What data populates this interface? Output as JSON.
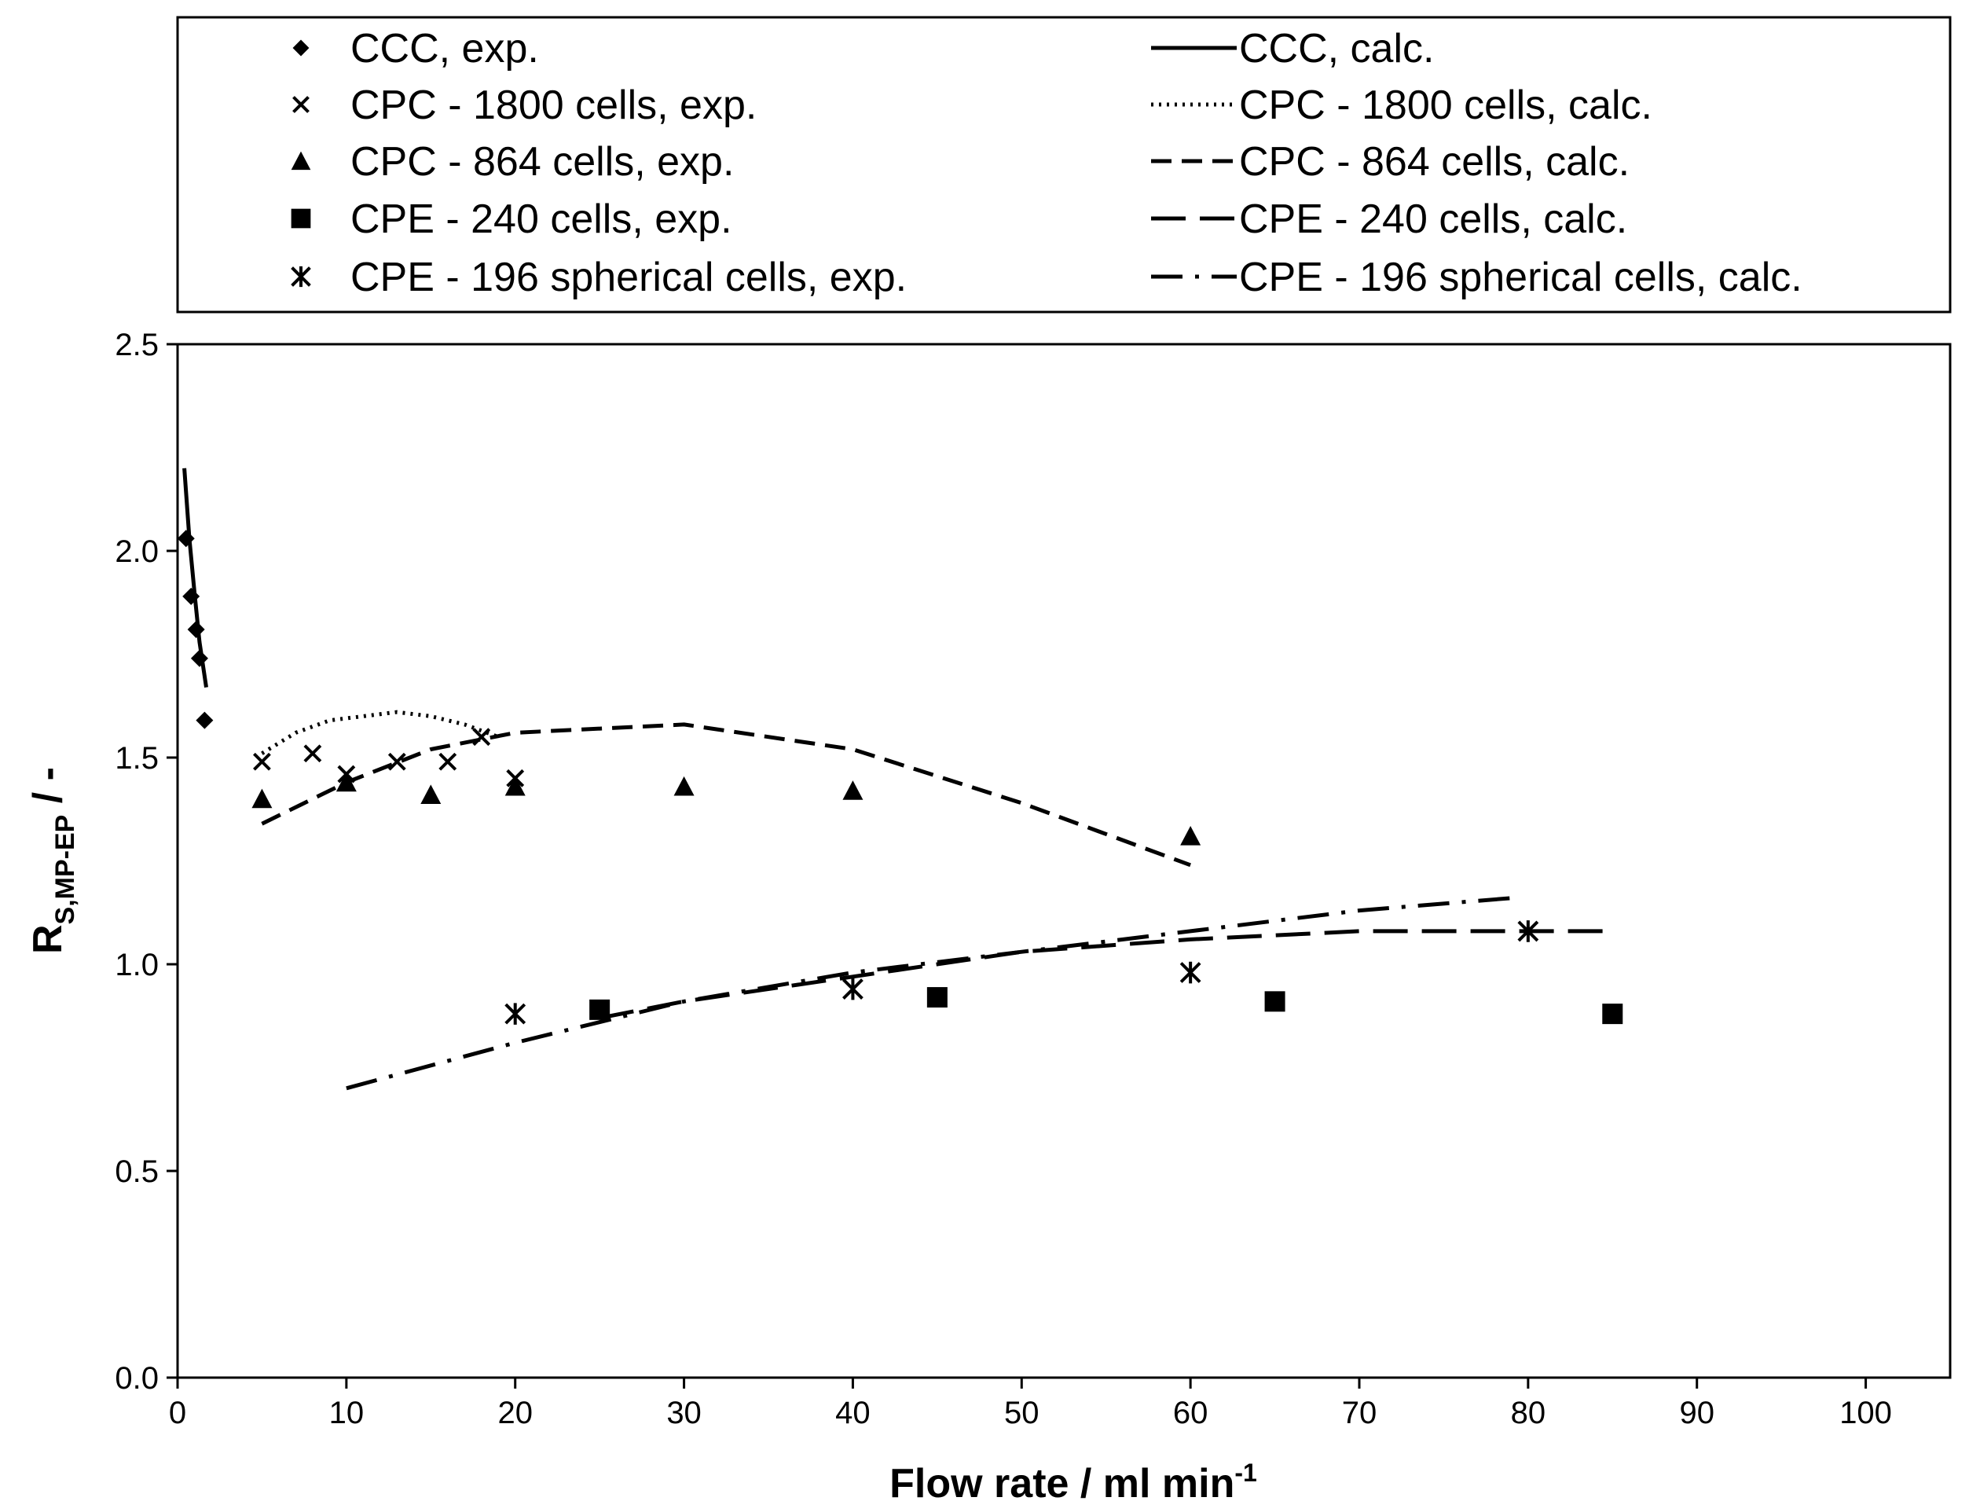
{
  "chart_data": {
    "type": "scatter",
    "title": "",
    "xlabel": "Flow rate / ml min",
    "xlabel_sup": "-1",
    "ylabel_main": "R",
    "ylabel_sub": "S,MP-EP",
    "ylabel_suffix": " / -",
    "xlim": [
      0,
      105
    ],
    "ylim": [
      0,
      2.5
    ],
    "x_ticks": [
      "0",
      "10",
      "20",
      "30",
      "40",
      "50",
      "60",
      "70",
      "80",
      "90",
      "100"
    ],
    "y_ticks": [
      "0.0",
      "0.5",
      "1.0",
      "1.5",
      "2.0",
      "2.5"
    ],
    "grid": false,
    "legend_position": "top",
    "experimental_series": [
      {
        "name": "CCC, exp.",
        "marker": "diamond",
        "points": [
          [
            0.5,
            2.03
          ],
          [
            0.8,
            1.89
          ],
          [
            1.1,
            1.81
          ],
          [
            1.3,
            1.74
          ],
          [
            1.6,
            1.59
          ]
        ]
      },
      {
        "name": "CPC - 1800 cells, exp.",
        "marker": "x",
        "points": [
          [
            5,
            1.49
          ],
          [
            8,
            1.51
          ],
          [
            10,
            1.46
          ],
          [
            13,
            1.49
          ],
          [
            16,
            1.49
          ],
          [
            18,
            1.55
          ],
          [
            20,
            1.45
          ]
        ]
      },
      {
        "name": "CPC - 864 cells, exp.",
        "marker": "triangle",
        "points": [
          [
            5,
            1.4
          ],
          [
            10,
            1.44
          ],
          [
            15,
            1.41
          ],
          [
            20,
            1.43
          ],
          [
            30,
            1.43
          ],
          [
            40,
            1.42
          ],
          [
            60,
            1.31
          ]
        ]
      },
      {
        "name": "CPE - 240 cells, exp.",
        "marker": "square",
        "points": [
          [
            25,
            0.89
          ],
          [
            45,
            0.92
          ],
          [
            65,
            0.91
          ],
          [
            85,
            0.88
          ]
        ]
      },
      {
        "name": "CPE - 196 spherical cells, exp.",
        "marker": "star",
        "points": [
          [
            20,
            0.88
          ],
          [
            40,
            0.94
          ],
          [
            60,
            0.98
          ],
          [
            80,
            1.08
          ]
        ]
      }
    ],
    "calculated_series": [
      {
        "name": "CCC, calc.",
        "line_style": "solid",
        "points": [
          [
            0.4,
            2.2
          ],
          [
            0.7,
            2.03
          ],
          [
            1.0,
            1.9
          ],
          [
            1.3,
            1.78
          ],
          [
            1.7,
            1.67
          ]
        ]
      },
      {
        "name": "CPC - 1800 cells, calc.",
        "line_style": "dotted",
        "points": [
          [
            5,
            1.51
          ],
          [
            7,
            1.56
          ],
          [
            9,
            1.59
          ],
          [
            11,
            1.6
          ],
          [
            13,
            1.61
          ],
          [
            15,
            1.6
          ],
          [
            17,
            1.58
          ],
          [
            19,
            1.55
          ]
        ]
      },
      {
        "name": "CPC - 864 cells, calc.",
        "line_style": "dashed",
        "points": [
          [
            5,
            1.34
          ],
          [
            10,
            1.44
          ],
          [
            15,
            1.52
          ],
          [
            20,
            1.56
          ],
          [
            30,
            1.58
          ],
          [
            40,
            1.52
          ],
          [
            50,
            1.39
          ],
          [
            60,
            1.24
          ]
        ]
      },
      {
        "name": "CPE - 240 cells, calc.",
        "line_style": "long-dash",
        "points": [
          [
            25,
            0.87
          ],
          [
            30,
            0.91
          ],
          [
            40,
            0.97
          ],
          [
            50,
            1.03
          ],
          [
            60,
            1.06
          ],
          [
            70,
            1.08
          ],
          [
            80,
            1.08
          ],
          [
            85,
            1.08
          ]
        ]
      },
      {
        "name": "CPE - 196 spherical cells, calc.",
        "line_style": "dash-dot",
        "points": [
          [
            10,
            0.7
          ],
          [
            20,
            0.81
          ],
          [
            30,
            0.91
          ],
          [
            40,
            0.98
          ],
          [
            50,
            1.03
          ],
          [
            60,
            1.08
          ],
          [
            70,
            1.13
          ],
          [
            79,
            1.16
          ]
        ]
      }
    ]
  }
}
